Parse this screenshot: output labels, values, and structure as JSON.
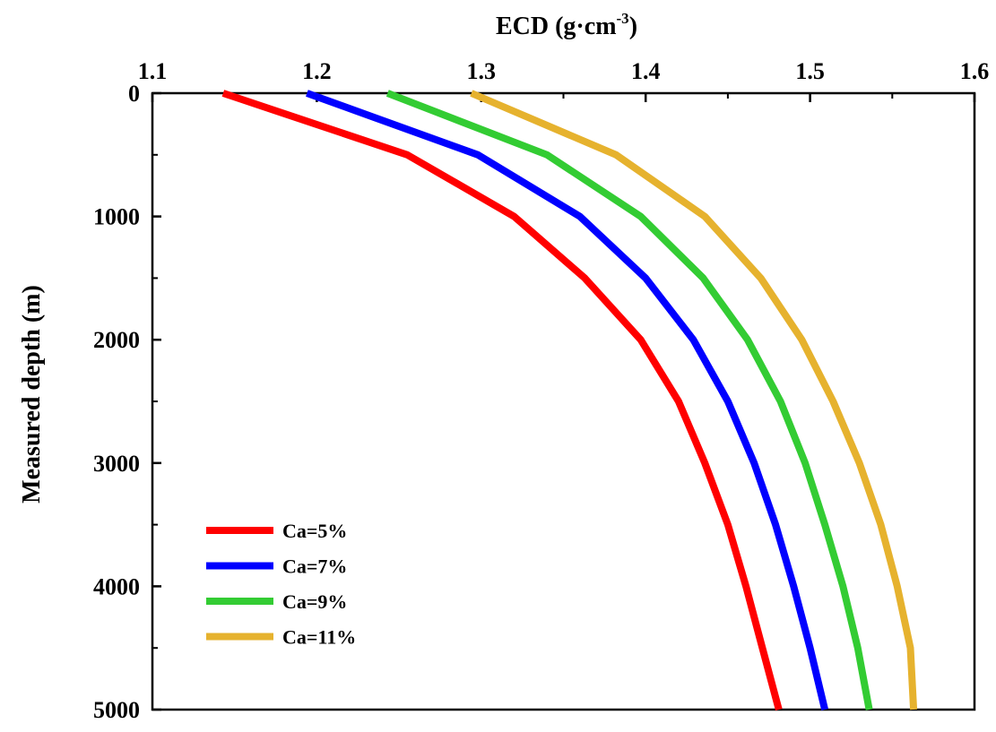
{
  "chart_data": {
    "type": "line",
    "title": "",
    "xlabel": "ECD (g·cm",
    "xlabel_sup": "-3",
    "xlabel_suffix": ")",
    "ylabel": "Measured depth (m)",
    "xlim": [
      1.1,
      1.6
    ],
    "ylim": [
      0,
      5000
    ],
    "y_inverted": true,
    "x_axis_position": "top",
    "x_ticks": [
      "1.1",
      "1.2",
      "1.3",
      "1.4",
      "1.5",
      "1.6"
    ],
    "y_ticks": [
      "0",
      "1000",
      "2000",
      "3000",
      "4000",
      "5000"
    ],
    "grid": false,
    "legend_position": "bottom-left",
    "depths": [
      0,
      500,
      1000,
      1500,
      2000,
      2500,
      3000,
      3500,
      4000,
      4500,
      5000
    ],
    "series": [
      {
        "name": "Ca=5%",
        "color": "#ff0000",
        "values": [
          1.143,
          1.255,
          1.32,
          1.363,
          1.397,
          1.42,
          1.436,
          1.45,
          1.461,
          1.471,
          1.481
        ]
      },
      {
        "name": "Ca=7%",
        "color": "#0000ff",
        "values": [
          1.194,
          1.298,
          1.36,
          1.4,
          1.429,
          1.45,
          1.466,
          1.479,
          1.49,
          1.5,
          1.509
        ]
      },
      {
        "name": "Ca=9%",
        "color": "#33cc33",
        "values": [
          1.243,
          1.34,
          1.397,
          1.435,
          1.462,
          1.482,
          1.497,
          1.509,
          1.52,
          1.529,
          1.536
        ]
      },
      {
        "name": "Ca=11%",
        "color": "#e6b22e",
        "values": [
          1.294,
          1.382,
          1.436,
          1.47,
          1.495,
          1.514,
          1.53,
          1.543,
          1.553,
          1.561,
          1.563
        ]
      }
    ]
  }
}
